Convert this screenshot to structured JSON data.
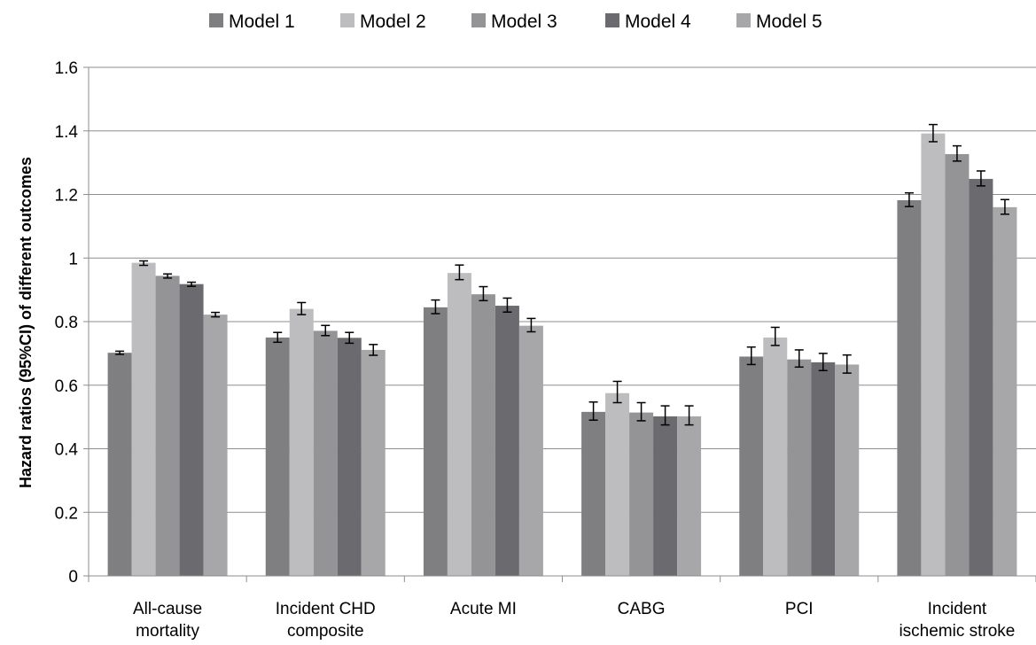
{
  "chart_data": {
    "type": "bar",
    "title": "",
    "xlabel": "",
    "ylabel": "Hazard ratios (95%CI) of different outcomes",
    "ylim": [
      0,
      1.6
    ],
    "yticks": [
      "0",
      "0.2",
      "0.4",
      "0.6",
      "0.8",
      "1",
      "1.2",
      "1.4",
      "1.6"
    ],
    "grid": true,
    "legend_position": "top",
    "categories": [
      [
        "All-cause",
        "mortality"
      ],
      [
        "Incident CHD",
        "composite"
      ],
      [
        "Acute MI"
      ],
      [
        "CABG"
      ],
      [
        "PCI"
      ],
      [
        "Incident",
        "ischemic stroke"
      ]
    ],
    "series": [
      {
        "name": "Model 1",
        "color": "#7f7f82",
        "values": [
          0.702,
          0.75,
          0.845,
          0.516,
          0.69,
          1.182
        ],
        "ci_low": [
          0.697,
          0.735,
          0.825,
          0.49,
          0.665,
          1.162
        ],
        "ci_high": [
          0.707,
          0.766,
          0.868,
          0.547,
          0.72,
          1.205
        ]
      },
      {
        "name": "Model 2",
        "color": "#bdbdc0",
        "values": [
          0.985,
          0.84,
          0.953,
          0.575,
          0.75,
          1.392
        ],
        "ci_low": [
          0.977,
          0.822,
          0.932,
          0.545,
          0.725,
          1.366
        ],
        "ci_high": [
          0.991,
          0.86,
          0.978,
          0.612,
          0.782,
          1.42
        ]
      },
      {
        "name": "Model 3",
        "color": "#949497",
        "values": [
          0.944,
          0.771,
          0.886,
          0.514,
          0.681,
          1.327
        ],
        "ci_low": [
          0.937,
          0.756,
          0.866,
          0.488,
          0.657,
          1.305
        ],
        "ci_high": [
          0.95,
          0.788,
          0.91,
          0.545,
          0.711,
          1.353
        ]
      },
      {
        "name": "Model 4",
        "color": "#6b6b6f",
        "values": [
          0.918,
          0.749,
          0.85,
          0.502,
          0.672,
          1.249
        ],
        "ci_low": [
          0.911,
          0.732,
          0.83,
          0.475,
          0.646,
          1.227
        ],
        "ci_high": [
          0.924,
          0.766,
          0.874,
          0.535,
          0.7,
          1.274
        ]
      },
      {
        "name": "Model 5",
        "color": "#a7a7aa",
        "values": [
          0.822,
          0.711,
          0.787,
          0.502,
          0.665,
          1.16
        ],
        "ci_low": [
          0.815,
          0.694,
          0.768,
          0.475,
          0.638,
          1.138
        ],
        "ci_high": [
          0.829,
          0.728,
          0.81,
          0.535,
          0.695,
          1.184
        ]
      }
    ]
  }
}
